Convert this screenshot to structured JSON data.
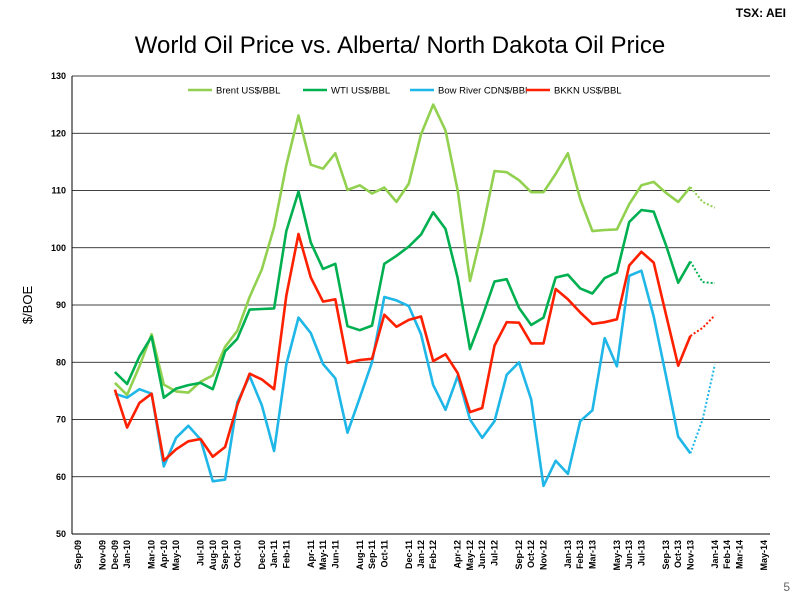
{
  "header": {
    "ticker": "TSX: AEI",
    "page_number": "5"
  },
  "chart_data": {
    "type": "line",
    "title": "World Oil Price vs. Alberta/ North Dakota Oil Price",
    "xlabel": "",
    "ylabel": "$/BOE",
    "ylim": [
      50,
      130
    ],
    "yticks": [
      50,
      60,
      70,
      80,
      90,
      100,
      110,
      120,
      130
    ],
    "grid": true,
    "legend": "top",
    "x": [
      "Sep-09",
      "Oct-09",
      "Nov-09",
      "Dec-09",
      "Jan-10",
      "Feb-10",
      "Mar-10",
      "Apr-10",
      "May-10",
      "Jun-10",
      "Jul-10",
      "Aug-10",
      "Sep-10",
      "Oct-10",
      "Nov-10",
      "Dec-10",
      "Jan-11",
      "Feb-11",
      "Mar-11",
      "Apr-11",
      "May-11",
      "Jun-11",
      "Jul-11",
      "Aug-11",
      "Sep-11",
      "Oct-11",
      "Nov-11",
      "Dec-11",
      "Jan-12",
      "Feb-12",
      "Mar-12",
      "Apr-12",
      "May-12",
      "Jun-12",
      "Jul-12",
      "Aug-12",
      "Sep-12",
      "Oct-12",
      "Nov-12",
      "Dec-12",
      "Jan-13",
      "Feb-13",
      "Mar-13",
      "Apr-13",
      "May-13",
      "Jun-13",
      "Jul-13",
      "Aug-13",
      "Sep-13",
      "Oct-13",
      "Nov-13",
      "Dec-13",
      "Jan-14",
      "Feb-14",
      "Mar-14",
      "Apr-14",
      "May-14"
    ],
    "xtick_labels": [
      "Sep-09",
      "Nov-09",
      "Dec-09",
      "Jan-10",
      "Mar-10",
      "Apr-10",
      "May-10",
      "Jul-10",
      "Aug-10",
      "Sep-10",
      "Oct-10",
      "Dec-10",
      "Jan-11",
      "Feb-11",
      "Apr-11",
      "May-11",
      "Jun-11",
      "Aug-11",
      "Sep-11",
      "Oct-11",
      "Dec-11",
      "Jan-12",
      "Feb-12",
      "Apr-12",
      "May-12",
      "Jun-12",
      "Jul-12",
      "Sep-12",
      "Oct-12",
      "Nov-12",
      "Jan-13",
      "Feb-13",
      "Mar-13",
      "May-13",
      "Jun-13",
      "Jul-13",
      "Sep-13",
      "Oct-13",
      "Nov-13",
      "Jan-14",
      "Feb-14",
      "Mar-14",
      "May-14"
    ],
    "series": [
      {
        "name": "Brent US$/BBL",
        "color": "#92d050",
        "values": [
          null,
          null,
          null,
          76.4,
          74.3,
          79.3,
          84.9,
          76.1,
          74.9,
          74.7,
          76.6,
          77.7,
          82.7,
          85.5,
          91.4,
          96.2,
          103.6,
          114.4,
          123.1,
          114.5,
          113.8,
          116.5,
          110.1,
          110.9,
          109.5,
          110.5,
          108.0,
          111.2,
          119.8,
          125.0,
          120.5,
          110.0,
          94.2,
          103.0,
          113.4,
          113.2,
          111.8,
          109.7,
          109.7,
          112.9,
          116.5,
          108.5,
          102.9,
          103.1,
          103.2,
          107.6,
          110.9,
          111.5,
          109.6,
          108.0,
          110.6,
          null,
          null,
          null,
          null,
          null,
          null
        ],
        "projected": {
          "start": "Nov-13",
          "values": [
            110.6,
            108.0,
            107.0
          ]
        }
      },
      {
        "name": "WTI US$/BBL",
        "color": "#00b050",
        "values": [
          null,
          null,
          null,
          78.3,
          76.2,
          81.0,
          84.5,
          73.8,
          75.4,
          76.0,
          76.4,
          75.3,
          81.9,
          84.1,
          89.2,
          89.3,
          89.4,
          102.9,
          109.8,
          100.9,
          96.3,
          97.2,
          86.3,
          85.6,
          86.4,
          97.2,
          98.6,
          100.2,
          102.3,
          106.2,
          103.3,
          94.7,
          82.3,
          87.9,
          94.1,
          94.5,
          89.5,
          86.5,
          87.8,
          94.8,
          95.3,
          92.9,
          92.0,
          94.7,
          95.7,
          104.5,
          106.6,
          106.3,
          100.5,
          93.9,
          97.6,
          null,
          null,
          null,
          null,
          null,
          null
        ],
        "projected": {
          "start": "Nov-13",
          "values": [
            97.6,
            94.0,
            93.8
          ]
        }
      },
      {
        "name": "Bow River CDN$/BBl",
        "color": "#1fb6e8",
        "values": [
          null,
          null,
          null,
          74.5,
          73.8,
          75.3,
          74.5,
          61.8,
          66.8,
          68.9,
          66.5,
          59.2,
          59.5,
          73.0,
          77.6,
          72.5,
          64.5,
          79.6,
          87.8,
          85.1,
          79.7,
          77.2,
          67.7,
          73.8,
          80.0,
          91.4,
          90.8,
          89.8,
          84.9,
          76.0,
          71.7,
          77.6,
          70.0,
          66.8,
          69.7,
          77.8,
          80.0,
          73.5,
          58.4,
          62.8,
          60.5,
          69.7,
          71.6,
          84.2,
          79.3,
          95.1,
          96.0,
          88.0,
          77.7,
          67.0,
          64.1,
          null,
          null,
          null,
          null,
          null,
          null
        ],
        "projected": {
          "start": "Nov-13",
          "values": [
            64.1,
            70.0,
            79.6
          ]
        }
      },
      {
        "name": "BKKN US$/BBL",
        "color": "#ff2000",
        "values": [
          null,
          null,
          null,
          75.2,
          68.6,
          72.9,
          74.5,
          62.8,
          64.8,
          66.2,
          66.6,
          63.5,
          65.2,
          72.5,
          78.0,
          77.0,
          75.3,
          91.6,
          102.4,
          94.8,
          90.6,
          91.0,
          79.9,
          80.4,
          80.6,
          88.3,
          86.2,
          87.4,
          88.0,
          80.2,
          81.4,
          78.1,
          71.3,
          72.0,
          82.9,
          87.0,
          86.9,
          83.3,
          83.3,
          92.8,
          91.0,
          88.7,
          86.7,
          87.0,
          87.5,
          96.9,
          99.3,
          97.4,
          88.4,
          79.4,
          84.6,
          null,
          null,
          null,
          null,
          null,
          null
        ],
        "projected": {
          "start": "Nov-13",
          "values": [
            84.6,
            86.0,
            88.2
          ]
        }
      }
    ]
  }
}
